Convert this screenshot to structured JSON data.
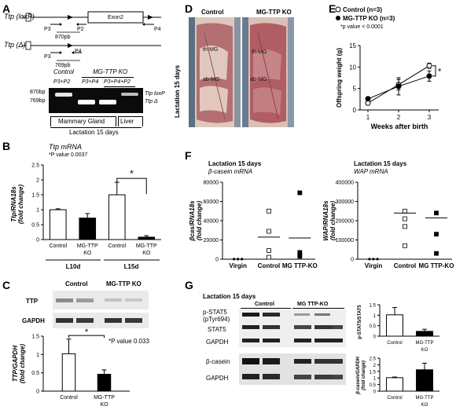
{
  "panel_letters": {
    "a": "A",
    "b": "B",
    "c": "C",
    "d": "D",
    "e": "E",
    "f": "F",
    "g": "G"
  },
  "panelA": {
    "allele_top": "Ttp (loxP)",
    "allele_bottom": "Ttp (Δ)",
    "exon_label": "Exon2",
    "primers_top": [
      "P3",
      "P2",
      "P4"
    ],
    "primers_bottom": [
      "P3",
      "P4"
    ],
    "band_top_bp": "870pb",
    "band_bottom_bp": "769pb",
    "ladder": [
      "870bp",
      "769bp"
    ],
    "header_control": "Control",
    "header_ko": "MG-TTP KO",
    "lane_labels": [
      "P3+P2",
      "P3+P4",
      "P3+P4+P2"
    ],
    "band_right": [
      "Ttp loxP",
      "Ttp Δ"
    ],
    "tissue_mg": "Mammary Gland",
    "tissue_liver": "Liver",
    "lactation": "Lactation 15 days"
  },
  "panelB": {
    "title": "Ttp mRNA",
    "pvalue": "*P value 0.0037",
    "star": "*",
    "ylabel": "Ttp/RNA18s (fold change)",
    "group_labels": [
      "L10d",
      "L15d"
    ],
    "chart_data": {
      "type": "bar",
      "ylim": [
        0,
        2.5
      ],
      "yticks": [
        "0",
        "0.5",
        "1",
        "1.5",
        "2",
        "2.5"
      ],
      "categories": [
        "Control",
        "MG-TTP KO",
        "Control",
        "MG-TTP KO"
      ],
      "values": [
        1.0,
        0.72,
        1.5,
        0.08
      ],
      "errors": [
        0.03,
        0.15,
        0.42,
        0.05
      ],
      "fills": [
        "#ffffff",
        "#000000",
        "#ffffff",
        "#000000"
      ]
    }
  },
  "panelC": {
    "header_control": "Control",
    "header_ko": "MG-TTP KO",
    "rows": [
      "TTP",
      "GAPDH"
    ],
    "pvalue": "*P value 0.033",
    "star": "*",
    "ylabel": "TTP/GAPDH (fold change)",
    "chart_data": {
      "type": "bar",
      "ylim": [
        0,
        1.5
      ],
      "yticks": [
        "0",
        "0.5",
        "1",
        "1.5"
      ],
      "categories": [
        "Control",
        "MG-TTP KO"
      ],
      "values": [
        1.02,
        0.46
      ],
      "errors": [
        0.4,
        0.12
      ],
      "fills": [
        "#ffffff",
        "#000000"
      ]
    }
  },
  "panelD": {
    "control": "Control",
    "ko": "MG-TTP KO",
    "side": "Lactation 15 days",
    "photo_labels": [
      "th-MG",
      "ab-MG",
      "th-MG",
      "ab-MG"
    ],
    "colors": {
      "tissue": "#b5656b",
      "skin": "#d9c3b6",
      "fat": "#e7d5cc"
    }
  },
  "panelE": {
    "legend": [
      "Control (n=3)",
      "MG-TTP KO (n=3)",
      "*p value < 0.0001"
    ],
    "xlabel": "Weeks after birth",
    "ylabel": "Offspring weight (g)",
    "star": "*",
    "chart_data": {
      "type": "line",
      "x": [
        1,
        2,
        3
      ],
      "xticks": [
        "1",
        "2",
        "3"
      ],
      "ylim": [
        0,
        15
      ],
      "yticks": [
        "0",
        "5",
        "10",
        "15"
      ],
      "series": [
        {
          "name": "Control (n=3)",
          "values": [
            1.6,
            5.9,
            10.3
          ],
          "errors": [
            0.2,
            1.2,
            0.6
          ],
          "marker": "open"
        },
        {
          "name": "MG-TTP KO (n=3)",
          "values": [
            2.6,
            5.5,
            7.9
          ],
          "errors": [
            0.2,
            2.0,
            1.2
          ],
          "marker": "filled"
        }
      ]
    }
  },
  "panelF": {
    "left_title": "Lactation 15 days",
    "left_sub": "β-casein mRNA",
    "left_ylabel": "βcas/RNA18s (fold change)",
    "right_title": "Lactation 15 days",
    "right_sub": "WAP mRNA",
    "right_ylabel": "WAP/RNA18s (fold change)",
    "chart_data": [
      {
        "type": "scatter",
        "ylim": [
          0,
          80000
        ],
        "yticks": [
          "0",
          "20000",
          "40000",
          "60000",
          "80000"
        ],
        "categories": [
          "Virgin",
          "Control",
          "MG TTP-KO"
        ],
        "points": [
          [
            0,
            90
          ],
          [
            0,
            90
          ],
          [
            0,
            90
          ],
          [
            1,
            2000
          ],
          [
            1,
            9000
          ],
          [
            1,
            29000
          ],
          [
            1,
            50000
          ],
          [
            2,
            3000
          ],
          [
            2,
            4500
          ],
          [
            2,
            7000
          ],
          [
            2,
            69000
          ]
        ],
        "means": [
          0,
          23000,
          22000
        ]
      },
      {
        "type": "scatter",
        "ylim": [
          0,
          400000
        ],
        "yticks": [
          "0",
          "100000",
          "200000",
          "300000",
          "400000"
        ],
        "categories": [
          "Virgin",
          "Control",
          "MG TTP-KO"
        ],
        "points": [
          [
            0,
            500
          ],
          [
            0,
            500
          ],
          [
            0,
            500
          ],
          [
            1,
            70000
          ],
          [
            1,
            170000
          ],
          [
            1,
            210000
          ],
          [
            1,
            250000
          ],
          [
            2,
            30000
          ],
          [
            2,
            130000
          ],
          [
            2,
            240000
          ]
        ],
        "means": [
          0,
          240000,
          215000
        ]
      }
    ]
  },
  "panelG": {
    "lactation": "Lactation 15 days",
    "header_control": "Control",
    "header_ko": "MG TTP-KO",
    "rows_top": [
      "p-STAT5",
      "(pTyr694)",
      "STAT5",
      "GAPDH"
    ],
    "rows_bottom": [
      "β-casein",
      "GAPDH"
    ],
    "top_ylabel": "p-STAT5/STAT5",
    "bottom_ylabel": "β-casein/GAPDH (fold change)",
    "chart_data": [
      {
        "type": "bar",
        "ylim": [
          0,
          1.5
        ],
        "yticks": [
          "0",
          "0.5",
          "1",
          "1.5"
        ],
        "categories": [
          "Control",
          "MG-TTP KO"
        ],
        "values": [
          1.02,
          0.23
        ],
        "errors": [
          0.35,
          0.1
        ],
        "fills": [
          "#ffffff",
          "#000000"
        ]
      },
      {
        "type": "bar",
        "ylim": [
          0,
          2.5
        ],
        "yticks": [
          "0",
          "0.5",
          "1",
          "1.5",
          "2",
          "2.5"
        ],
        "categories": [
          "Control",
          "MG-TTP KO"
        ],
        "values": [
          1.02,
          1.62
        ],
        "errors": [
          0.05,
          0.5
        ],
        "fills": [
          "#ffffff",
          "#000000"
        ]
      }
    ]
  }
}
